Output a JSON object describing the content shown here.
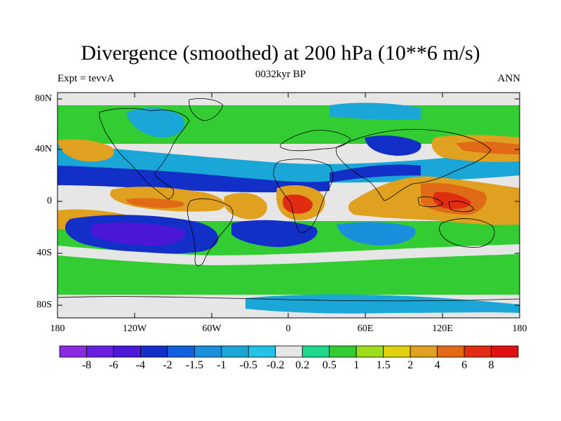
{
  "title": "Divergence (smoothed) at 200 hPa (10**6 m/s)",
  "left_string": "Expt = tevvA",
  "center_string": "0032kyr BP",
  "right_string": "ANN",
  "lat_labels": [
    "80N",
    "40N",
    "0",
    "40S",
    "80S"
  ],
  "lon_labels": [
    "180",
    "120W",
    "60W",
    "0",
    "60E",
    "120E",
    "180"
  ],
  "colorbar": {
    "labels": [
      "-8",
      "-6",
      "-4",
      "-2",
      "-1.5",
      "-1",
      "-0.5",
      "-0.2",
      "0.2",
      "0.5",
      "1",
      "1.5",
      "2",
      "4",
      "6",
      "8"
    ],
    "colors": [
      "#8a2be2",
      "#6a1ee0",
      "#4b18d8",
      "#1230c8",
      "#1060e0",
      "#1a90dc",
      "#1aa6d6",
      "#24c2e6",
      "#e6e6e6",
      "#1ed88e",
      "#33cc33",
      "#9fdc1c",
      "#e0d010",
      "#e0a020",
      "#e06a16",
      "#e02c10",
      "#e01010"
    ]
  },
  "colors": {
    "land_outline": "#000000",
    "background": "#ffffff"
  }
}
